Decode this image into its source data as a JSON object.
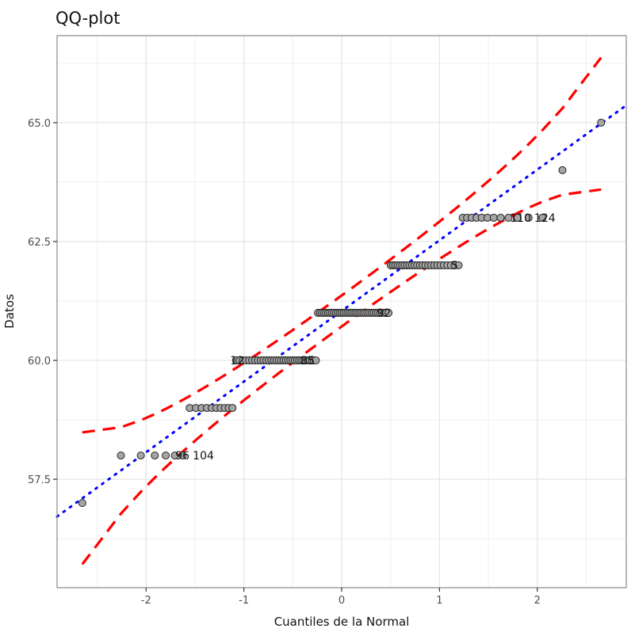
{
  "chart_data": {
    "type": "scatter",
    "title": "QQ-plot",
    "xlabel": "Cuantiles de la Normal",
    "ylabel": "Datos",
    "xlim": [
      -2.91,
      2.91
    ],
    "ylim": [
      55.22,
      66.83
    ],
    "xticks": [
      -2,
      -1,
      0,
      1,
      2
    ],
    "xtick_labels": [
      "-2",
      "-1",
      "0",
      "1",
      "2"
    ],
    "yticks": [
      57.5,
      60.0,
      62.5,
      65.0
    ],
    "ytick_labels": [
      "57.5",
      "60.0",
      "62.5",
      "65.0"
    ],
    "grid": true,
    "sample_size": 125,
    "value_counts": [
      {
        "value": 57,
        "count": 1
      },
      {
        "value": 58,
        "count": 6
      },
      {
        "value": 59,
        "count": 10
      },
      {
        "value": 60,
        "count": 33
      },
      {
        "value": 61,
        "count": 36
      },
      {
        "value": 62,
        "count": 25
      },
      {
        "value": 63,
        "count": 12
      },
      {
        "value": 64,
        "count": 1
      },
      {
        "value": 65,
        "count": 1
      }
    ],
    "reference_line": {
      "slope": 1.486,
      "intercept": 61.04,
      "color": "#0000ff",
      "style": "dotted"
    },
    "confidence_band": {
      "level": 0.95,
      "color": "#ff0000",
      "style": "dashed"
    },
    "point_colors": {
      "fill": "#a6a6a6",
      "stroke": "#222222"
    },
    "annotations": [
      {
        "text": "96",
        "x": -1.7,
        "y": 58
      },
      {
        "text": "104",
        "x": -1.6,
        "y": 58
      },
      {
        "text": "110",
        "x": 1.72,
        "y": 63
      },
      {
        "text": "124",
        "x": 1.92,
        "y": 63
      },
      {
        "text": "12",
        "x": -1.14,
        "y": 60
      },
      {
        "text": "85",
        "x": -0.42,
        "y": 60
      },
      {
        "text": "92",
        "x": 0.36,
        "y": 61
      },
      {
        "text": "5",
        "x": 1.12,
        "y": 62
      }
    ]
  }
}
